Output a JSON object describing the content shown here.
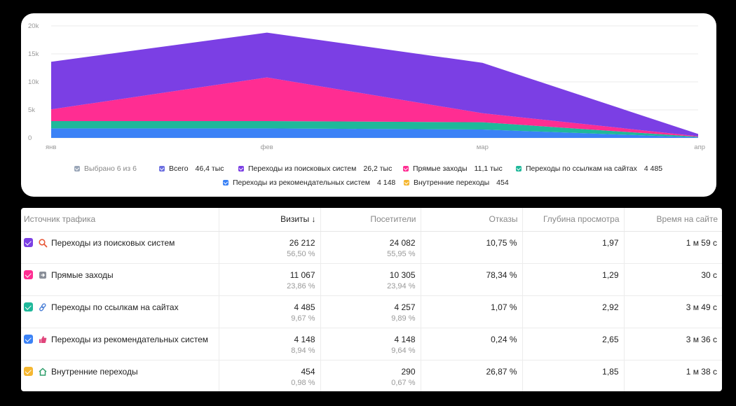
{
  "chart_data": {
    "type": "area",
    "stacked": true,
    "categories": [
      "янв",
      "фев",
      "мар",
      "апр"
    ],
    "y_ticks": [
      "0",
      "5k",
      "10k",
      "15k",
      "20k"
    ],
    "ylim": [
      0,
      20000
    ],
    "grid": true,
    "series": [
      {
        "name": "Переходы из рекомендательных систем",
        "color": "#3b82f6",
        "values": [
          1700,
          1700,
          1500,
          100
        ]
      },
      {
        "name": "Переходы по ссылкам на сайтах",
        "color": "#1fb89a",
        "values": [
          1300,
          1300,
          1300,
          100
        ]
      },
      {
        "name": "Прямые заходы",
        "color": "#ff2d92",
        "values": [
          2100,
          7800,
          1600,
          100
        ]
      },
      {
        "name": "Переходы из поисковых систем",
        "color": "#7b3fe4",
        "values": [
          8500,
          8000,
          9000,
          400
        ]
      }
    ]
  },
  "legend": {
    "row1": [
      {
        "label": "Выбрано 6 из 6",
        "value": "",
        "color": "#9aa6b8",
        "muted": true
      },
      {
        "label": "Всего",
        "value": "46,4 тыс",
        "color": "#6b6ee0"
      },
      {
        "label": "Переходы из поисковых систем",
        "value": "26,2 тыс",
        "color": "#7b3fe4"
      },
      {
        "label": "Прямые заходы",
        "value": "11,1 тыс",
        "color": "#ff2d92"
      },
      {
        "label": "Переходы по ссылкам на сайтах",
        "value": "4 485",
        "color": "#1fb89a"
      }
    ],
    "row2": [
      {
        "label": "Переходы из рекомендательных систем",
        "value": "4 148",
        "color": "#3b82f6"
      },
      {
        "label": "Внутренние переходы",
        "value": "454",
        "color": "#f5b731"
      }
    ]
  },
  "table": {
    "headers": [
      "Источник трафика",
      "Визиты ↓",
      "Посетители",
      "Отказы",
      "Глубина просмотра",
      "Время на сайте"
    ],
    "rows": [
      {
        "source": "Переходы из поисковых систем",
        "color": "#7b3fe4",
        "icon": "search-icon",
        "visits": "26 212",
        "visits_pct": "56,50 %",
        "visitors": "24 082",
        "visitors_pct": "55,95 %",
        "bounce": "10,75 %",
        "depth": "1,97",
        "time": "1 м 59 с"
      },
      {
        "source": "Прямые заходы",
        "color": "#ff2d92",
        "icon": "direct-entry-icon",
        "visits": "11 067",
        "visits_pct": "23,86 %",
        "visitors": "10 305",
        "visitors_pct": "23,94 %",
        "bounce": "78,34 %",
        "depth": "1,29",
        "time": "30 с"
      },
      {
        "source": "Переходы по ссылкам на сайтах",
        "color": "#1fb89a",
        "icon": "link-icon",
        "visits": "4 485",
        "visits_pct": "9,67 %",
        "visitors": "4 257",
        "visitors_pct": "9,89 %",
        "bounce": "1,07 %",
        "depth": "2,92",
        "time": "3 м 49 с"
      },
      {
        "source": "Переходы из рекомендательных систем",
        "color": "#3b82f6",
        "icon": "thumbs-up-icon",
        "visits": "4 148",
        "visits_pct": "8,94 %",
        "visitors": "4 148",
        "visitors_pct": "9,64 %",
        "bounce": "0,24 %",
        "depth": "2,65",
        "time": "3 м 36 с"
      },
      {
        "source": "Внутренние переходы",
        "color": "#f5b731",
        "icon": "home-icon",
        "visits": "454",
        "visits_pct": "0,98 %",
        "visitors": "290",
        "visitors_pct": "0,67 %",
        "bounce": "26,87 %",
        "depth": "1,85",
        "time": "1 м 38 с"
      }
    ]
  }
}
